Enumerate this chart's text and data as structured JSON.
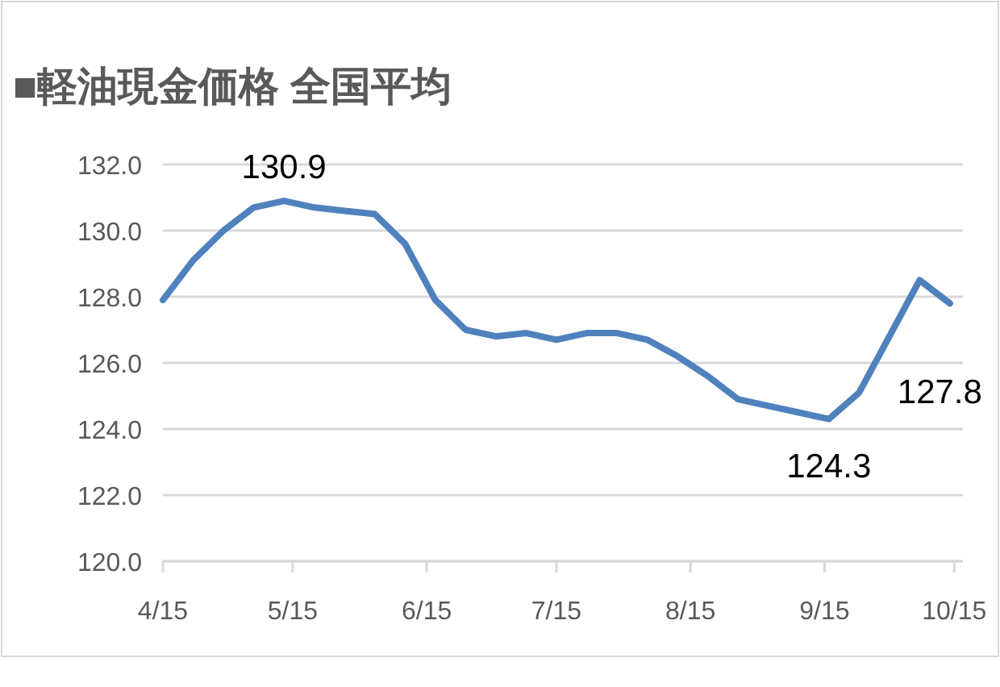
{
  "chart_data": {
    "type": "line",
    "title": "■軽油現金価格  全国平均",
    "x": [
      "--04-15",
      "--04-22",
      "--04-29",
      "--05-06",
      "--05-13",
      "--05-20",
      "--05-27",
      "--06-03",
      "--06-10",
      "--06-17",
      "--06-24",
      "--07-01",
      "--07-08",
      "--07-15",
      "--07-22",
      "--07-29",
      "--08-05",
      "--08-12",
      "--08-19",
      "--08-26",
      "--09-02",
      "--09-09",
      "--09-16",
      "--09-23",
      "--09-30",
      "--10-07",
      "--10-14"
    ],
    "series": [
      {
        "color": "#4f81bd",
        "values": [
          127.9,
          129.1,
          130.0,
          130.7,
          130.9,
          130.7,
          130.6,
          130.5,
          129.6,
          127.9,
          127.0,
          126.8,
          126.9,
          126.7,
          126.9,
          126.9,
          126.7,
          126.2,
          125.6,
          124.9,
          124.7,
          124.5,
          124.3,
          125.1,
          126.8,
          128.5,
          127.8
        ],
        "value_labels": [
          null,
          null,
          null,
          null,
          "130.9",
          null,
          null,
          null,
          null,
          null,
          null,
          null,
          null,
          null,
          null,
          null,
          null,
          null,
          null,
          null,
          null,
          null,
          "124.3",
          null,
          null,
          null,
          "127.8"
        ]
      }
    ],
    "xlim": [
      "--04-15",
      "--10-17"
    ],
    "xticks": [
      {
        "value": "--04-15",
        "label": "4/15"
      },
      {
        "value": "--05-15",
        "label": "5/15"
      },
      {
        "value": "--06-15",
        "label": "6/15"
      },
      {
        "value": "--07-15",
        "label": "7/15"
      },
      {
        "value": "--08-15",
        "label": "8/15"
      },
      {
        "value": "--09-15",
        "label": "9/15"
      },
      {
        "value": "--10-15",
        "label": "10/15"
      }
    ],
    "ylim": [
      120,
      132
    ],
    "yticks": [
      {
        "value": 120,
        "label": "120.0"
      },
      {
        "value": 122,
        "label": "122.0"
      },
      {
        "value": 124,
        "label": "124.0"
      },
      {
        "value": 126,
        "label": "126.0"
      },
      {
        "value": 128,
        "label": "128.0"
      },
      {
        "value": 130,
        "label": "130.0"
      },
      {
        "value": 132,
        "label": "132.0"
      }
    ],
    "grid": "y",
    "marker": "none",
    "line_style": "solid"
  }
}
